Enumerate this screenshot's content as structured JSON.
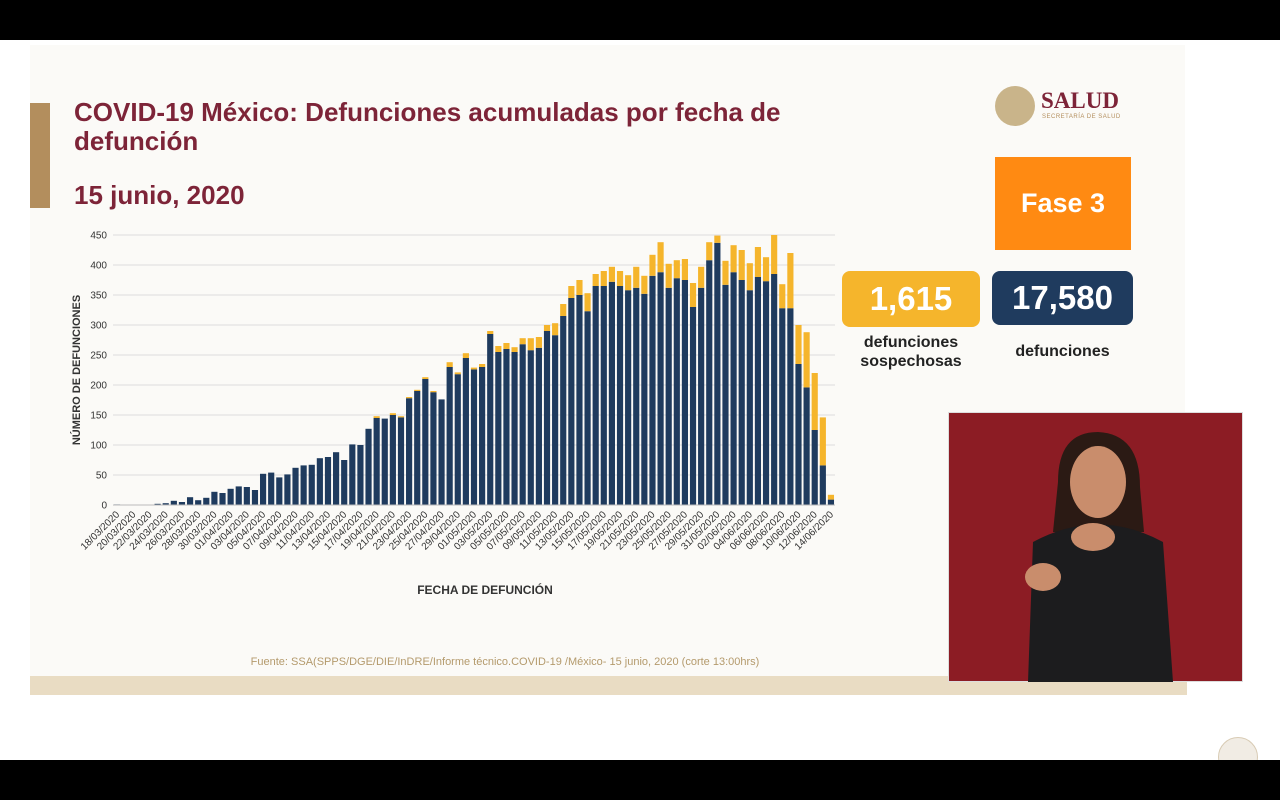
{
  "header": {
    "title": "COVID-19 México: Defunciones acumuladas por fecha de defunción",
    "date": "15 junio, 2020"
  },
  "logo": {
    "name": "SALUD",
    "subtitle": "SECRETARÍA DE SALUD"
  },
  "phase": "Fase 3",
  "kpis": [
    {
      "value": "1,615",
      "label": "defunciones sospechosas"
    },
    {
      "value": "17,580",
      "label": "defunciones"
    }
  ],
  "source": "Fuente: SSA(SPPS/DGE/DIE/InDRE/Informe técnico.COVID-19 /México- 15 junio, 2020 (corte 13:00hrs)",
  "chart_data": {
    "type": "stacked_bar",
    "x_label": "FECHA DE DEFUNCIÓN",
    "y_label": "NÚMERO DE DEFUNCIONES",
    "categories": [
      "18/03/2020",
      null,
      "20/03/2020",
      null,
      "22/03/2020",
      null,
      "24/03/2020",
      null,
      "26/03/2020",
      null,
      "28/03/2020",
      null,
      "30/03/2020",
      null,
      "01/04/2020",
      null,
      "03/04/2020",
      null,
      "05/04/2020",
      null,
      "07/04/2020",
      null,
      "09/04/2020",
      null,
      "11/04/2020",
      null,
      "13/04/2020",
      null,
      "15/04/2020",
      null,
      "17/04/2020",
      null,
      "19/04/2020",
      null,
      "21/04/2020",
      null,
      "23/04/2020",
      null,
      "25/04/2020",
      null,
      "27/04/2020",
      null,
      "29/04/2020",
      null,
      "01/05/2020",
      null,
      "03/05/2020",
      null,
      "05/05/2020",
      null,
      "07/05/2020",
      null,
      "09/05/2020",
      null,
      "11/05/2020",
      null,
      "13/05/2020",
      null,
      "15/05/2020",
      null,
      "17/05/2020",
      null,
      "19/05/2020",
      null,
      "21/05/2020",
      null,
      "23/05/2020",
      null,
      "25/05/2020",
      null,
      "27/05/2020",
      null,
      "29/05/2020",
      null,
      "31/05/2020",
      null,
      "02/06/2020",
      null,
      "04/06/2020",
      null,
      "06/06/2020",
      null,
      "08/06/2020",
      null,
      "10/06/2020",
      null,
      "12/06/2020",
      null,
      "14/06/2020"
    ],
    "series": [
      {
        "color": "#1f3b5e",
        "values": [
          1,
          0,
          0,
          0,
          0,
          2,
          3,
          7,
          5,
          13,
          8,
          12,
          22,
          20,
          27,
          31,
          30,
          25,
          52,
          54,
          46,
          51,
          62,
          66,
          67,
          78,
          80,
          88,
          75,
          101,
          100,
          127,
          145,
          144,
          150,
          146,
          178,
          190,
          210,
          188,
          176,
          230,
          218,
          245,
          226,
          230,
          285,
          255,
          260,
          255,
          268,
          258,
          262,
          290,
          283,
          315,
          345,
          350,
          323,
          365,
          365,
          372,
          365,
          358,
          362,
          352,
          382,
          388,
          362,
          378,
          375,
          330,
          362,
          408,
          437,
          367,
          388,
          375,
          358,
          380,
          373,
          385,
          328,
          328,
          235,
          196,
          125,
          66,
          9
        ]
      },
      {
        "color": "#f5b52c",
        "values": [
          0,
          0,
          0,
          0,
          0,
          0,
          0,
          0,
          0,
          0,
          0,
          0,
          0,
          0,
          0,
          0,
          0,
          0,
          0,
          0,
          0,
          0,
          0,
          0,
          0,
          0,
          0,
          0,
          0,
          0,
          0,
          0,
          3,
          0,
          3,
          2,
          2,
          2,
          3,
          2,
          0,
          8,
          3,
          8,
          3,
          5,
          5,
          10,
          10,
          8,
          10,
          20,
          18,
          10,
          20,
          20,
          20,
          25,
          30,
          20,
          25,
          25,
          25,
          25,
          35,
          30,
          35,
          50,
          40,
          30,
          35,
          40,
          35,
          30,
          12,
          40,
          45,
          50,
          45,
          50,
          40,
          65,
          40,
          92,
          65,
          92,
          95,
          80,
          8
        ]
      }
    ],
    "ylim": [
      0,
      450
    ],
    "yticks": [
      0,
      50,
      100,
      150,
      200,
      250,
      300,
      350,
      400,
      450
    ],
    "grid": true
  }
}
